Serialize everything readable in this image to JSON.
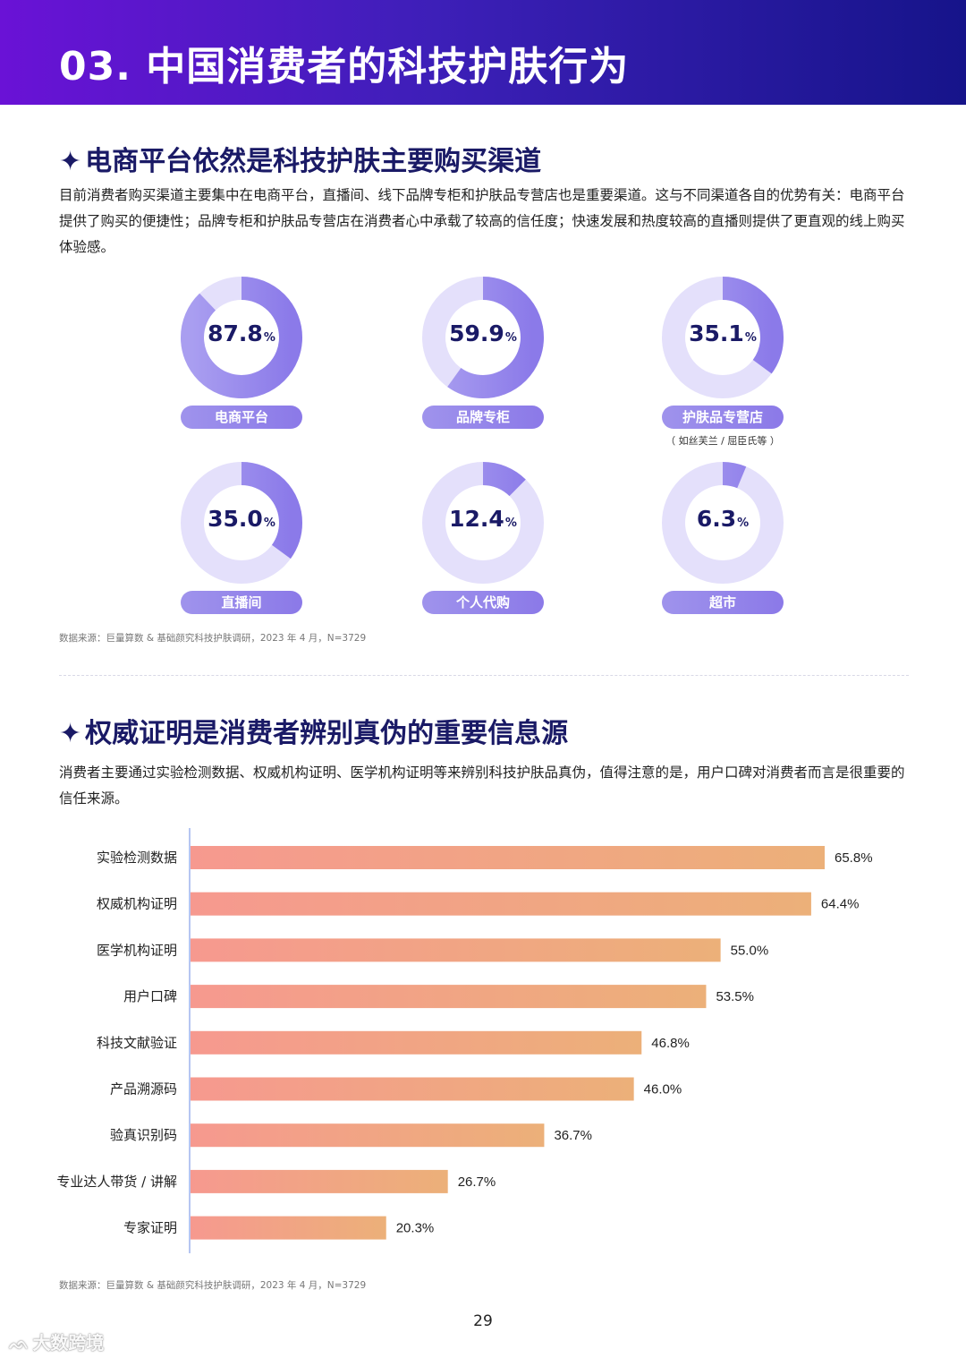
{
  "header": {
    "title": "03. 中国消费者的科技护肤行为"
  },
  "section1": {
    "title": "电商平台依然是科技护肤主要购买渠道",
    "paragraph": "目前消费者购买渠道主要集中在电商平台，直播间、线下品牌专柜和护肤品专营店也是重要渠道。这与不同渠道各自的优势有关：电商平台提供了购买的便捷性；品牌专柜和护肤品专营店在消费者心中承载了较高的信任度；快速发展和热度较高的直播则提供了更直观的线上购买体验感。",
    "source": "数据来源：巨量算数 & 基础颜究科技护肤调研，2023 年 4 月，N=3729",
    "donuts": [
      {
        "value": "87.8",
        "label": "电商平台",
        "note": ""
      },
      {
        "value": "59.9",
        "label": "品牌专柜",
        "note": ""
      },
      {
        "value": "35.1",
        "label": "护肤品专营店",
        "note": "（ 如丝芙兰 / 屈臣氏等 ）"
      },
      {
        "value": "35.0",
        "label": "直播间",
        "note": ""
      },
      {
        "value": "12.4",
        "label": "个人代购",
        "note": ""
      },
      {
        "value": "6.3",
        "label": "超市",
        "note": ""
      }
    ],
    "percent_sign": "%",
    "colors": {
      "ring_track": "#e4e0fb",
      "ring_fill": "#8b7ae9",
      "ring_fill_light": "#a99ef0",
      "pill": "#9387ea"
    }
  },
  "section2": {
    "title": "权威证明是消费者辨别真伪的重要信息源",
    "paragraph": "消费者主要通过实验检测数据、权威机构证明、医学机构证明等来辨别科技护肤品真伪，值得注意的是，用户口碑对消费者而言是很重要的信任来源。",
    "source": "数据来源：巨量算数 & 基础颜究科技护肤调研，2023 年 4 月，N=3729"
  },
  "chart_data": {
    "type": "bar",
    "orientation": "horizontal",
    "categories": [
      "实验检测数据",
      "权威机构证明",
      "医学机构证明",
      "用户口碑",
      "科技文献验证",
      "产品溯源码",
      "验真识别码",
      "专业达人带货 / 讲解",
      "专家证明"
    ],
    "values": [
      65.8,
      64.4,
      55.0,
      53.5,
      46.8,
      46.0,
      36.7,
      26.7,
      20.3
    ],
    "value_labels": [
      "65.8%",
      "64.4%",
      "55.0%",
      "53.5%",
      "46.8%",
      "46.0%",
      "36.7%",
      "26.7%",
      "20.3%"
    ],
    "title": "",
    "xlabel": "",
    "ylabel": "",
    "xlim": [
      0,
      65.8
    ],
    "grid": false,
    "colors": {
      "bar_start": "#f6998f",
      "bar_end": "#ecb079",
      "axis": "#9db4ee"
    }
  },
  "page_number": "29",
  "watermark": {
    "text": "大数跨境",
    "icon": "chat-bubbles-icon"
  }
}
